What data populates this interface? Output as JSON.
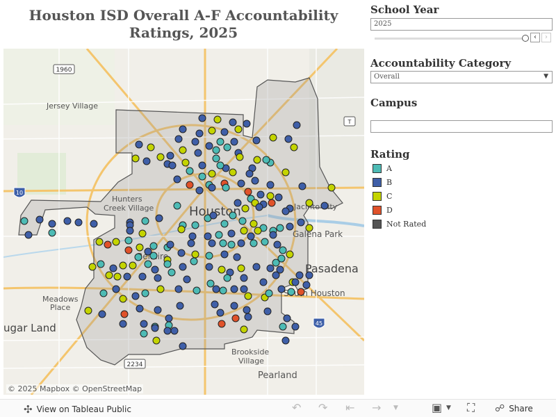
{
  "title": "Houston ISD Overall A-F Accountability Ratings, 2025",
  "filters": {
    "school_year": {
      "label": "School Year",
      "value": "2025"
    },
    "category": {
      "label": "Accountability Category",
      "value": "Overall"
    },
    "campus": {
      "label": "Campus",
      "value": ""
    }
  },
  "legend": {
    "title": "Rating",
    "items": [
      {
        "label": "A",
        "color": "#4dbbb5"
      },
      {
        "label": "B",
        "color": "#3f5fa8"
      },
      {
        "label": "C",
        "color": "#c4d400"
      },
      {
        "label": "D",
        "color": "#e0522a"
      },
      {
        "label": "Not Rated",
        "color": "#555555"
      }
    ]
  },
  "map": {
    "attribution": "© 2025 Mapbox  © OpenStreetMap",
    "labels": {
      "houston": "Houston",
      "jersey_village": "Jersey Village",
      "hunters_creek": "Hunters",
      "hunters_creek_2": "Creek Village",
      "galena_park": "Galena Park",
      "jacinto_city": "Jacinto City",
      "pasadena": "Pasadena",
      "bellaire": "Bellaire",
      "south_houston": "South Houston",
      "meadows_place": "Meadows",
      "meadows_place_2": "Place",
      "sugar_land": "ugar Land",
      "brookside": "Brookside",
      "brookside_2": "Village",
      "pearland": "Pearland",
      "hwy_1960": "1960",
      "hwy_2234": "2234",
      "i10": "10",
      "i45": "45",
      "hwy_t": "T"
    }
  },
  "footer": {
    "view_label": "View on Tableau Public",
    "share_label": "Share"
  }
}
